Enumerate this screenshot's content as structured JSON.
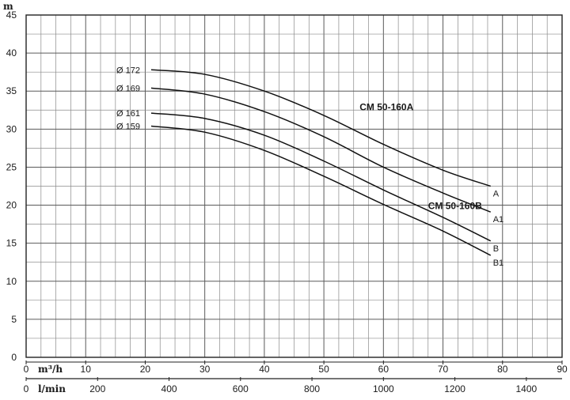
{
  "chart_data": {
    "type": "line",
    "title": "",
    "ylabel": "m",
    "xlabel": "m³/h",
    "x2label": "l/min",
    "xlim": [
      0,
      90
    ],
    "ylim": [
      0,
      45
    ],
    "x_ticks": [
      0,
      10,
      20,
      30,
      40,
      50,
      60,
      70,
      80,
      90
    ],
    "y_ticks": [
      0,
      5,
      10,
      15,
      20,
      25,
      30,
      35,
      40,
      45
    ],
    "x2_ticks": [
      0,
      200,
      400,
      600,
      800,
      1000,
      1200,
      1400
    ],
    "grid": true,
    "series": [
      {
        "name": "A",
        "diameter_label": "Ø 172",
        "x": [
          21,
          30,
          40,
          50,
          60,
          70,
          78
        ],
        "y": [
          37.8,
          37.2,
          35.0,
          31.8,
          28.0,
          24.6,
          22.5
        ]
      },
      {
        "name": "A1",
        "diameter_label": "Ø 169",
        "x": [
          21,
          30,
          40,
          50,
          60,
          70,
          78
        ],
        "y": [
          35.4,
          34.6,
          32.3,
          29.0,
          25.0,
          21.6,
          19.1
        ]
      },
      {
        "name": "B",
        "diameter_label": "Ø 161",
        "x": [
          21,
          30,
          40,
          50,
          60,
          70,
          78
        ],
        "y": [
          32.1,
          31.4,
          29.2,
          25.8,
          22.0,
          18.4,
          15.3
        ]
      },
      {
        "name": "B1",
        "diameter_label": "Ø 159",
        "x": [
          21,
          30,
          40,
          50,
          60,
          70,
          78
        ],
        "y": [
          30.4,
          29.6,
          27.2,
          23.8,
          20.1,
          16.6,
          13.4
        ]
      }
    ],
    "annotations": [
      {
        "text": "CM 50-160A",
        "x": 56,
        "y": 32.5
      },
      {
        "text": "CM 50-160B",
        "x": 67.5,
        "y": 19.5
      }
    ]
  }
}
